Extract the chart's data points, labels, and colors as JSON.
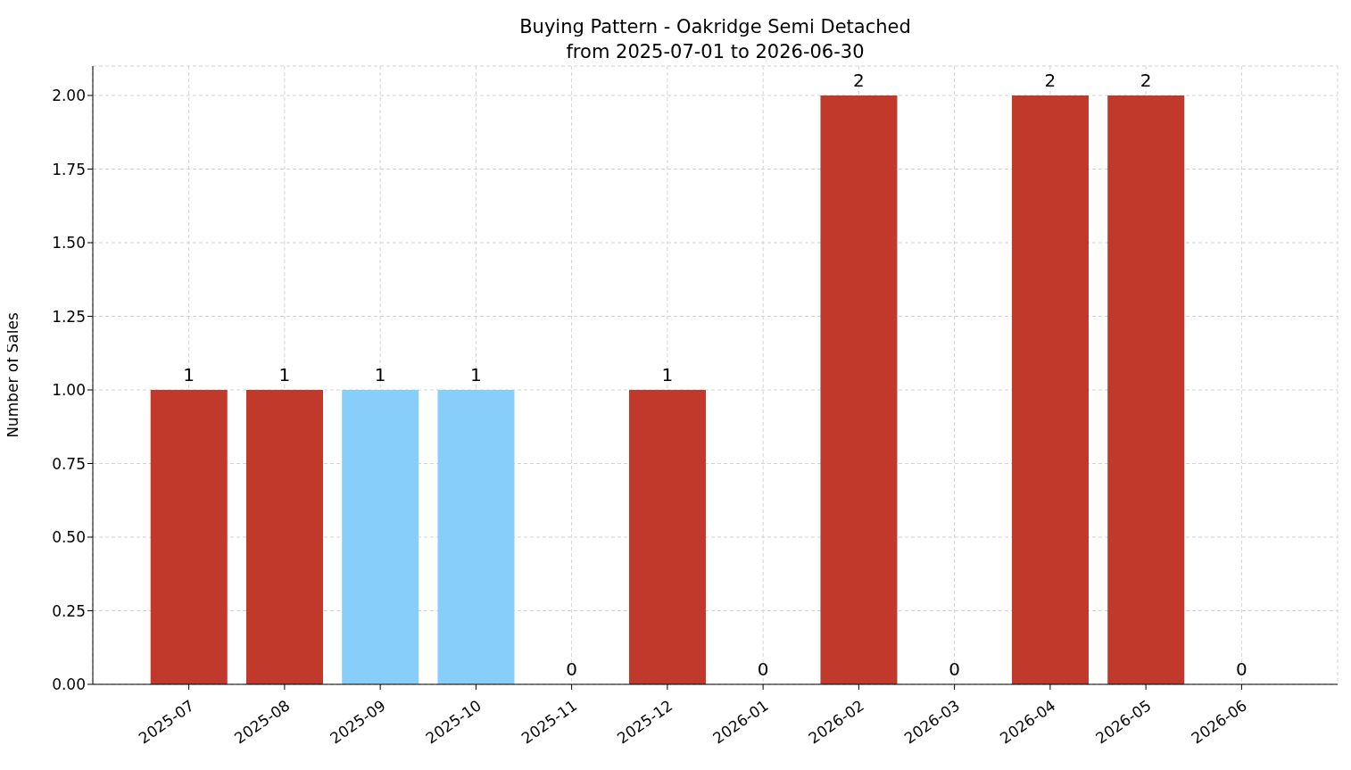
{
  "chart_data": {
    "type": "bar",
    "title": "Buying Pattern - Oakridge Semi Detached\nfrom 2025-07-01 to 2026-06-30",
    "ylabel": "Number of Sales",
    "categories": [
      "2025-07",
      "2025-08",
      "2025-09",
      "2025-10",
      "2025-11",
      "2025-12",
      "2026-01",
      "2026-02",
      "2026-03",
      "2026-04",
      "2026-05",
      "2026-06"
    ],
    "values": [
      1,
      1,
      1,
      1,
      0,
      1,
      0,
      2,
      0,
      2,
      2,
      0
    ],
    "colors": [
      "#c0392b",
      "#c0392b",
      "#87cefa",
      "#87cefa",
      "#c0392b",
      "#c0392b",
      "#c0392b",
      "#c0392b",
      "#c0392b",
      "#c0392b",
      "#c0392b",
      "#c0392b"
    ],
    "ylim": [
      0,
      2.1
    ],
    "yticks": [
      {
        "value": 0,
        "label": "0.00"
      },
      {
        "value": 0.25,
        "label": "0.25"
      },
      {
        "value": 0.5,
        "label": "0.50"
      },
      {
        "value": 0.75,
        "label": "0.75"
      },
      {
        "value": 1,
        "label": "1.00"
      },
      {
        "value": 1.25,
        "label": "1.25"
      },
      {
        "value": 1.5,
        "label": "1.50"
      },
      {
        "value": 1.75,
        "label": "1.75"
      },
      {
        "value": 2,
        "label": "2.00"
      }
    ],
    "grid": true,
    "data_labels": true
  }
}
